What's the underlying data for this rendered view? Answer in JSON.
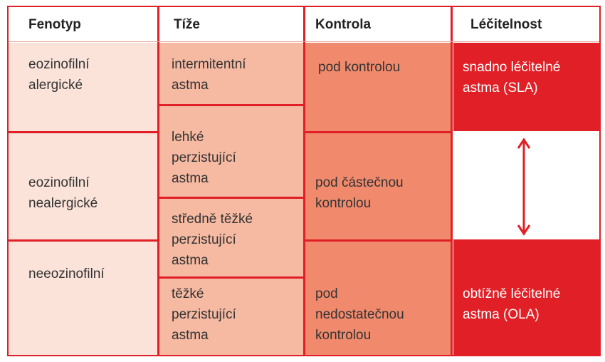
{
  "headers": {
    "fenotyp": "Fenotyp",
    "taze": "Tíže",
    "kontrola": "Kontrola",
    "lecitelnost": "Léčitelnost"
  },
  "fenotyp": [
    "eozinofilní\nalergické",
    "eozinofilní\nnealergické",
    "neeozinofilní"
  ],
  "taze": [
    "intermitentní\nastma",
    "lehké\nperzistující\nastma",
    "středně těžké\nperzistující\nastma",
    "těžké\nperzistující\nastma"
  ],
  "kontrola": [
    "pod kontrolou",
    "pod částečnou\nkontrolou",
    "pod\nnedostatečnou\nkontrolou"
  ],
  "lecitelnost": [
    "snadno léčitelné\nastma (SLA)",
    "obtížně léčitelné\nastma (OLA)"
  ],
  "colors": {
    "border": "#e01f26",
    "col1": "#fbe3d9",
    "col2": "#f6b9a2",
    "col3": "#f18a6c",
    "col4": "#e01f26"
  }
}
